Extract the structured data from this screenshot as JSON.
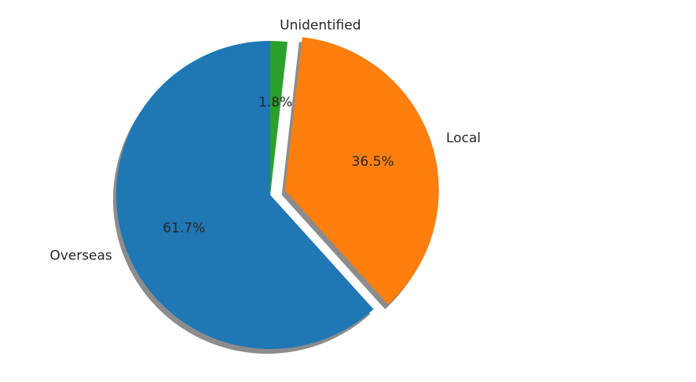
{
  "chart_data": {
    "type": "pie",
    "title": "",
    "start_angle_deg": 90,
    "direction": "counterclockwise",
    "shadow": true,
    "slices": [
      {
        "label": "Overseas",
        "value": 61.7,
        "value_label": "61.7%",
        "explode": 0.0,
        "color": "#1f77b4"
      },
      {
        "label": "Local",
        "value": 36.5,
        "value_label": "36.5%",
        "explode": 0.1,
        "color": "#ff7f0e"
      },
      {
        "label": "Unidentified",
        "value": 1.8,
        "value_label": "1.8%",
        "explode": 0.0,
        "color": "#2ca02c"
      }
    ]
  }
}
